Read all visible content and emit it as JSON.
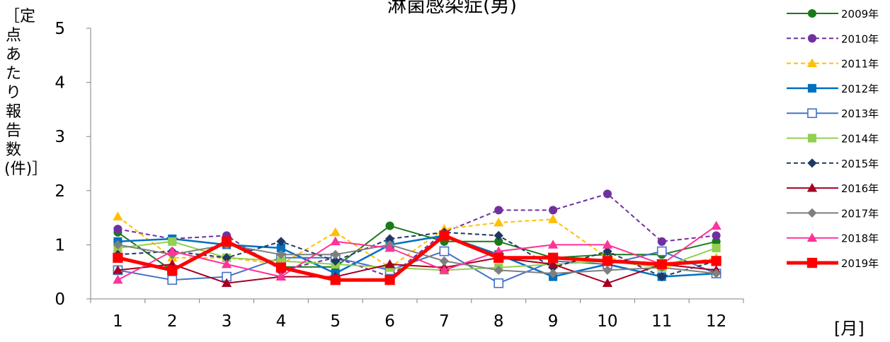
{
  "chart_data": {
    "type": "line",
    "title": "淋菌感染症(男)",
    "ylabel_text": "［定点あたり報告数(件)］",
    "xlabel": "[月]",
    "x": [
      "1",
      "2",
      "3",
      "4",
      "5",
      "6",
      "7",
      "8",
      "9",
      "10",
      "11",
      "12"
    ],
    "ylim": [
      0,
      5
    ],
    "yticks": [
      "0",
      "1",
      "2",
      "3",
      "4",
      "5"
    ],
    "grid": false,
    "legend_position": "right",
    "series": [
      {
        "name": "2009年",
        "color": "#1a7a1a",
        "dash": "solid",
        "marker": "circle-filled",
        "width": 2,
        "values": [
          1.23,
          0.52,
          1.05,
          0.59,
          0.59,
          1.35,
          1.06,
          1.06,
          0.76,
          0.82,
          0.82,
          1.06
        ]
      },
      {
        "name": "2010年",
        "color": "#7030a0",
        "dash": "dashed",
        "marker": "circle-filled",
        "width": 2,
        "values": [
          1.29,
          1.11,
          1.17,
          0.53,
          0.76,
          0.41,
          1.23,
          1.64,
          1.64,
          1.94,
          1.06,
          1.17
        ]
      },
      {
        "name": "2011年",
        "color": "#ffc000",
        "dash": "dashed",
        "marker": "triangle-filled",
        "width": 2,
        "values": [
          1.52,
          0.76,
          0.76,
          0.64,
          1.23,
          0.58,
          1.29,
          1.41,
          1.47,
          0.76,
          0.58,
          0.76
        ]
      },
      {
        "name": "2012年",
        "color": "#0070c0",
        "dash": "solid",
        "marker": "square-filled",
        "width": 2.5,
        "values": [
          1.06,
          1.11,
          1.0,
          0.94,
          0.47,
          1.0,
          1.17,
          0.82,
          0.41,
          0.64,
          0.41,
          0.47
        ]
      },
      {
        "name": "2013年",
        "color": "#4472c4",
        "dash": "solid",
        "marker": "square-open",
        "width": 2,
        "values": [
          0.53,
          0.35,
          0.41,
          0.76,
          0.76,
          0.53,
          0.88,
          0.29,
          0.7,
          0.64,
          0.88,
          0.47
        ]
      },
      {
        "name": "2014年",
        "color": "#92d050",
        "dash": "solid",
        "marker": "square-filled",
        "width": 2,
        "values": [
          0.94,
          1.06,
          0.76,
          0.7,
          0.64,
          0.58,
          0.53,
          0.58,
          0.64,
          0.7,
          0.58,
          0.94
        ]
      },
      {
        "name": "2015年",
        "color": "#1f3864",
        "dash": "dashed",
        "marker": "diamond-filled",
        "width": 2,
        "values": [
          0.82,
          0.88,
          0.76,
          1.06,
          0.7,
          1.11,
          1.23,
          1.17,
          0.58,
          0.88,
          0.41,
          0.7
        ]
      },
      {
        "name": "2016年",
        "color": "#a50021",
        "dash": "solid",
        "marker": "triangle-filled",
        "width": 2,
        "values": [
          0.53,
          0.64,
          0.29,
          0.41,
          0.41,
          0.64,
          0.58,
          0.76,
          0.64,
          0.29,
          0.64,
          0.53
        ]
      },
      {
        "name": "2017年",
        "color": "#7f7f7f",
        "dash": "solid",
        "marker": "diamond-filled",
        "width": 2,
        "values": [
          1.0,
          0.82,
          1.0,
          0.82,
          0.82,
          1.0,
          0.7,
          0.53,
          0.47,
          0.53,
          0.58,
          0.47
        ]
      },
      {
        "name": "2018年",
        "color": "#ff3399",
        "dash": "solid",
        "marker": "triangle-filled",
        "width": 2,
        "values": [
          0.35,
          0.88,
          0.64,
          0.41,
          1.06,
          0.94,
          0.53,
          0.88,
          1.0,
          1.0,
          0.64,
          1.35
        ]
      },
      {
        "name": "2019年",
        "color": "#ff0000",
        "dash": "solid",
        "marker": "square-filled",
        "width": 5,
        "values": [
          0.76,
          0.53,
          1.06,
          0.58,
          0.35,
          0.35,
          1.17,
          0.76,
          0.76,
          0.7,
          0.64,
          0.7
        ]
      }
    ]
  }
}
